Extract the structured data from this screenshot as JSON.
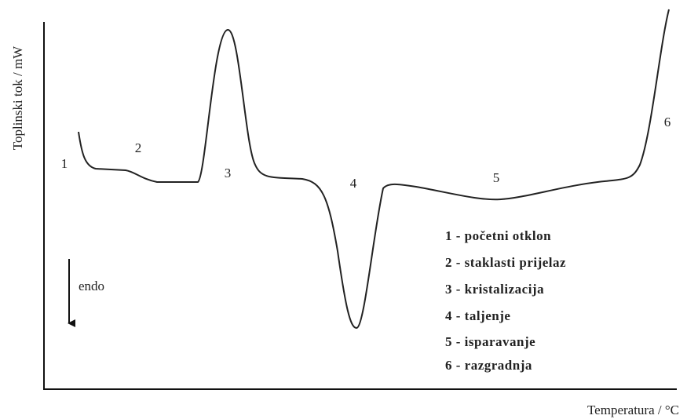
{
  "axes": {
    "y_label": "Toplinski tok / mW",
    "x_label": "Temperatura / °C"
  },
  "points": [
    "1",
    "2",
    "3",
    "4",
    "5",
    "6"
  ],
  "direction": "endo",
  "legend": [
    "1 - početni otklon",
    "2 - staklasti prijelaz",
    "3 - kristalizacija",
    "4 - taljenje",
    "5 - isparavanje",
    "6 - razgradnja"
  ]
}
